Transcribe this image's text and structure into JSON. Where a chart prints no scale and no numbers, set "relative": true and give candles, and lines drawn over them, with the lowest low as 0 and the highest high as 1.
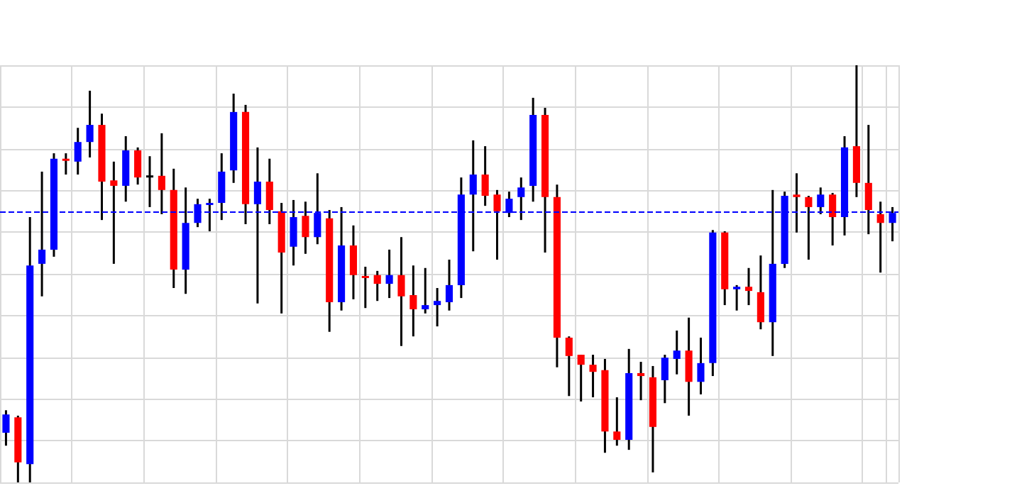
{
  "chart_data": {
    "type": "candlestick",
    "relative": true,
    "grid": true,
    "colors": [
      "#0000ff",
      "#ff0000",
      "#0000ff",
      "#0000ff",
      "#0000ff",
      "#ff0000",
      "#0000ff",
      "#0000ff",
      "#ff0000",
      "#ff0000",
      "#0000ff",
      "#ff0000",
      "#000000",
      "#ff0000",
      "#ff0000",
      "#0000ff",
      "#0000ff",
      "#0000ff",
      "#0000ff",
      "#0000ff",
      "#ff0000",
      "#0000ff",
      "#ff0000",
      "#ff0000",
      "#0000ff",
      "#ff0000",
      "#0000ff",
      "#ff0000",
      "#0000ff",
      "#ff0000",
      "#ff0000",
      "#ff0000",
      "#0000ff",
      "#ff0000",
      "#ff0000",
      "#0000ff",
      "#0000ff",
      "#0000ff",
      "#0000ff",
      "#0000ff",
      "#ff0000",
      "#ff0000",
      "#0000ff",
      "#0000ff",
      "#0000ff",
      "#ff0000",
      "#ff0000",
      "#ff0000",
      "#ff0000",
      "#ff0000",
      "#ff0000",
      "#ff0000",
      "#0000ff",
      "#ff0000",
      "#ff0000",
      "#0000ff",
      "#0000ff",
      "#ff0000",
      "#0000ff",
      "#0000ff",
      "#ff0000",
      "#0000ff",
      "#ff0000",
      "#ff0000",
      "#0000ff",
      "#0000ff",
      "#ff0000",
      "#ff0000",
      "#0000ff",
      "#ff0000",
      "#0000ff",
      "#ff0000",
      "#ff0000",
      "#ff0000",
      "#0000ff"
    ],
    "categories": [
      null,
      null,
      null,
      null,
      null,
      null,
      null,
      null,
      null,
      null,
      null,
      null,
      null,
      null,
      null,
      null,
      null,
      null,
      null,
      null,
      null,
      null,
      null,
      null,
      null,
      null,
      null,
      null,
      null,
      null,
      null,
      null,
      null,
      null,
      null,
      null,
      null,
      null,
      null,
      null,
      null,
      null,
      null,
      null,
      null,
      null,
      null,
      null,
      null,
      null,
      null,
      null,
      null,
      null,
      null,
      null,
      null,
      null,
      null,
      null,
      null,
      null,
      null,
      null,
      null,
      null,
      null,
      null,
      null,
      null,
      null,
      null,
      null,
      null,
      null
    ],
    "ohlc": [
      [
        0.119,
        0.173,
        0.088,
        0.163
      ],
      [
        0.156,
        0.16,
        0,
        0.048
      ],
      [
        0.044,
        0.636,
        0,
        0.52
      ],
      [
        0.524,
        0.745,
        0.446,
        0.558
      ],
      [
        0.558,
        0.789,
        0.541,
        0.776
      ],
      [
        0.776,
        0.789,
        0.738,
        0.772
      ],
      [
        0.769,
        0.85,
        0.738,
        0.816
      ],
      [
        0.816,
        0.939,
        0.779,
        0.857
      ],
      [
        0.857,
        0.884,
        0.629,
        0.721
      ],
      [
        0.724,
        0.769,
        0.524,
        0.711
      ],
      [
        0.711,
        0.83,
        0.673,
        0.796
      ],
      [
        0.796,
        0.803,
        0.714,
        0.731
      ],
      [
        0.736,
        0.782,
        0.66,
        0.735
      ],
      [
        0.735,
        0.837,
        0.643,
        0.701
      ],
      [
        0.701,
        0.752,
        0.466,
        0.51
      ],
      [
        0.51,
        0.707,
        0.452,
        0.622
      ],
      [
        0.622,
        0.68,
        0.612,
        0.667
      ],
      [
        0.667,
        0.68,
        0.602,
        0.67
      ],
      [
        0.67,
        0.789,
        0.629,
        0.745
      ],
      [
        0.748,
        0.932,
        0.718,
        0.888
      ],
      [
        0.888,
        0.905,
        0.619,
        0.667
      ],
      [
        0.667,
        0.803,
        0.429,
        0.721
      ],
      [
        0.721,
        0.776,
        0.619,
        0.653
      ],
      [
        0.65,
        0.67,
        0.405,
        0.551
      ],
      [
        0.565,
        0.677,
        0.52,
        0.636
      ],
      [
        0.639,
        0.673,
        0.548,
        0.588
      ],
      [
        0.588,
        0.741,
        0.571,
        0.646
      ],
      [
        0.633,
        0.653,
        0.361,
        0.432
      ],
      [
        0.432,
        0.66,
        0.412,
        0.568
      ],
      [
        0.568,
        0.616,
        0.439,
        0.497
      ],
      [
        0.495,
        0.517,
        0.418,
        0.491
      ],
      [
        0.497,
        0.507,
        0.435,
        0.476
      ],
      [
        0.476,
        0.558,
        0.442,
        0.497
      ],
      [
        0.497,
        0.588,
        0.327,
        0.446
      ],
      [
        0.449,
        0.52,
        0.35,
        0.415
      ],
      [
        0.415,
        0.514,
        0.405,
        0.425
      ],
      [
        0.425,
        0.466,
        0.374,
        0.435
      ],
      [
        0.432,
        0.534,
        0.412,
        0.473
      ],
      [
        0.473,
        0.731,
        0.442,
        0.69
      ],
      [
        0.69,
        0.82,
        0.554,
        0.738
      ],
      [
        0.738,
        0.806,
        0.663,
        0.687
      ],
      [
        0.69,
        0.701,
        0.534,
        0.65
      ],
      [
        0.646,
        0.697,
        0.636,
        0.68
      ],
      [
        0.684,
        0.731,
        0.629,
        0.707
      ],
      [
        0.711,
        0.922,
        0.673,
        0.881
      ],
      [
        0.881,
        0.898,
        0.551,
        0.684
      ],
      [
        0.684,
        0.714,
        0.276,
        0.347
      ],
      [
        0.347,
        0.35,
        0.207,
        0.303
      ],
      [
        0.306,
        0.306,
        0.194,
        0.282
      ],
      [
        0.282,
        0.306,
        0.204,
        0.265
      ],
      [
        0.269,
        0.296,
        0.071,
        0.122
      ],
      [
        0.122,
        0.204,
        0.088,
        0.102
      ],
      [
        0.102,
        0.32,
        0.078,
        0.262
      ],
      [
        0.262,
        0.289,
        0.197,
        0.255
      ],
      [
        0.252,
        0.279,
        0.024,
        0.133
      ],
      [
        0.245,
        0.306,
        0.19,
        0.299
      ],
      [
        0.296,
        0.364,
        0.259,
        0.316
      ],
      [
        0.316,
        0.395,
        0.16,
        0.241
      ],
      [
        0.241,
        0.347,
        0.211,
        0.286
      ],
      [
        0.286,
        0.605,
        0.255,
        0.599
      ],
      [
        0.599,
        0.602,
        0.425,
        0.463
      ],
      [
        0.463,
        0.473,
        0.412,
        0.469
      ],
      [
        0.469,
        0.514,
        0.425,
        0.459
      ],
      [
        0.456,
        0.544,
        0.367,
        0.384
      ],
      [
        0.384,
        0.701,
        0.303,
        0.524
      ],
      [
        0.524,
        0.697,
        0.514,
        0.687
      ],
      [
        0.69,
        0.741,
        0.599,
        0.684
      ],
      [
        0.684,
        0.687,
        0.534,
        0.66
      ],
      [
        0.66,
        0.707,
        0.643,
        0.69
      ],
      [
        0.69,
        0.694,
        0.568,
        0.636
      ],
      [
        0.636,
        0.83,
        0.592,
        0.803
      ],
      [
        0.806,
        1,
        0.684,
        0.718
      ],
      [
        0.718,
        0.857,
        0.595,
        0.653
      ],
      [
        0.643,
        0.673,
        0.503,
        0.622
      ],
      [
        0.622,
        0.66,
        0.578,
        0.646
      ]
    ],
    "ref_lines": [
      {
        "axis": "y",
        "value": 0.646,
        "color": "#0000ff",
        "line_style": "dashed"
      }
    ]
  }
}
